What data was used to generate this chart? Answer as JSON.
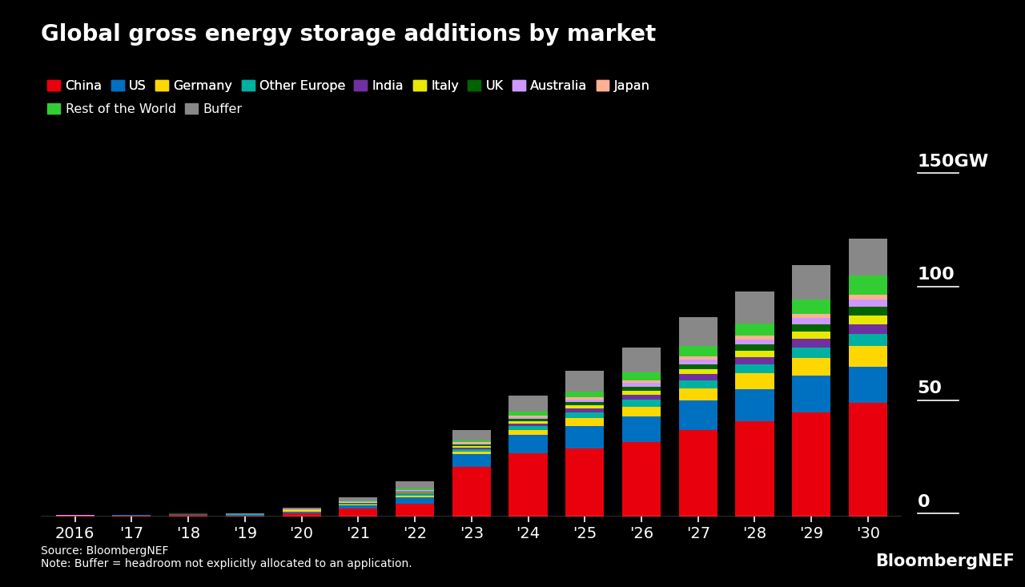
{
  "title": "Global gross energy storage additions by market",
  "background_color": "#000000",
  "text_color": "#ffffff",
  "year_labels": [
    "2016",
    "'17",
    "'18",
    "'19",
    "'20",
    "'21",
    "'22",
    "'23",
    "'24",
    "'25",
    "'26",
    "'27",
    "'28",
    "'29",
    "'30"
  ],
  "segments": [
    {
      "label": "China",
      "color": "#e8000d",
      "values": [
        0.3,
        0.4,
        0.7,
        0.5,
        1.5,
        3.5,
        5.5,
        22.0,
        28.0,
        30.0,
        33.0,
        38.0,
        42.0,
        46.0,
        50.0
      ]
    },
    {
      "label": "US",
      "color": "#0070c0",
      "values": [
        0.15,
        0.2,
        0.3,
        0.3,
        0.6,
        1.5,
        3.0,
        5.5,
        8.0,
        10.0,
        11.0,
        13.0,
        14.0,
        16.0,
        16.0
      ]
    },
    {
      "label": "Germany",
      "color": "#ffd700",
      "values": [
        0.03,
        0.03,
        0.08,
        0.08,
        0.25,
        0.4,
        0.8,
        1.2,
        2.0,
        3.5,
        4.5,
        5.5,
        7.0,
        8.0,
        9.0
      ]
    },
    {
      "label": "Other Europe",
      "color": "#00b0a0",
      "values": [
        0.03,
        0.03,
        0.08,
        0.08,
        0.2,
        0.4,
        0.6,
        1.0,
        1.8,
        2.5,
        3.0,
        3.5,
        4.0,
        4.5,
        5.5
      ]
    },
    {
      "label": "India",
      "color": "#7030a0",
      "values": [
        0.01,
        0.01,
        0.03,
        0.03,
        0.08,
        0.2,
        0.4,
        0.7,
        1.2,
        1.8,
        2.2,
        2.8,
        3.2,
        3.8,
        4.2
      ]
    },
    {
      "label": "Italy",
      "color": "#e8e800",
      "values": [
        0.01,
        0.01,
        0.03,
        0.03,
        0.08,
        0.2,
        0.35,
        0.5,
        0.9,
        1.3,
        1.8,
        2.2,
        2.8,
        3.2,
        3.8
      ]
    },
    {
      "label": "UK",
      "color": "#006400",
      "values": [
        0.01,
        0.01,
        0.03,
        0.03,
        0.15,
        0.25,
        0.45,
        0.7,
        1.0,
        1.3,
        1.8,
        2.2,
        2.8,
        3.2,
        3.8
      ]
    },
    {
      "label": "Australia",
      "color": "#cc99ff",
      "values": [
        0.01,
        0.01,
        0.03,
        0.03,
        0.15,
        0.25,
        0.4,
        0.6,
        0.9,
        1.3,
        1.6,
        2.0,
        2.3,
        2.8,
        3.2
      ]
    },
    {
      "label": "Japan",
      "color": "#ffb090",
      "values": [
        0.01,
        0.01,
        0.03,
        0.03,
        0.08,
        0.15,
        0.3,
        0.5,
        0.7,
        0.9,
        1.0,
        1.3,
        1.6,
        1.8,
        2.3
      ]
    },
    {
      "label": "Rest of the World",
      "color": "#32cd32",
      "values": [
        0.03,
        0.03,
        0.08,
        0.08,
        0.15,
        0.3,
        0.6,
        1.0,
        1.7,
        2.5,
        3.5,
        4.5,
        5.5,
        6.5,
        8.5
      ]
    },
    {
      "label": "Buffer",
      "color": "#888888",
      "values": [
        0.08,
        0.08,
        0.15,
        0.25,
        0.8,
        1.5,
        3.0,
        4.5,
        7.0,
        9.0,
        11.0,
        13.0,
        14.0,
        15.0,
        16.0
      ]
    }
  ],
  "ylim": [
    0,
    150
  ],
  "yticks": [
    0,
    50,
    100,
    150
  ],
  "source_text": "Source: BloombergNEF\nNote: Buffer = headroom not explicitly allocated to an application.",
  "brand_text": "BloombergNEF",
  "title_fontsize": 20,
  "axis_fontsize": 14,
  "legend_fontsize": 11.5,
  "annotation_fontsize": 16
}
